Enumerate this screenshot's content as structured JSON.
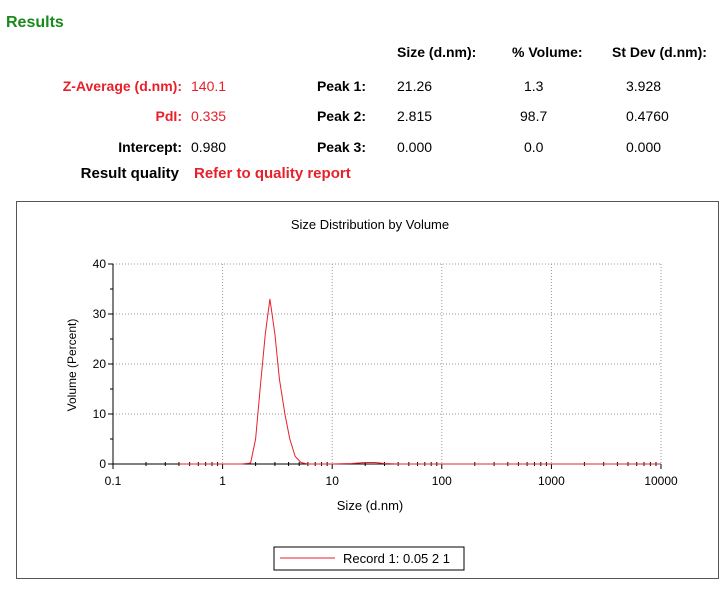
{
  "results": {
    "title": "Results",
    "headers": {
      "size": "Size (d.nm):",
      "volume": "% Volume:",
      "stdev": "St Dev (d.nm):"
    },
    "zavg_label": "Z-Average (d.nm):",
    "zavg_value": "140.1",
    "pdi_label": "PdI:",
    "pdi_value": "0.335",
    "intercept_label": "Intercept:",
    "intercept_value": "0.980",
    "quality_label": "Result quality",
    "quality_value": "Refer to quality report",
    "peaks": [
      {
        "label": "Peak 1:",
        "size": "21.26",
        "volume": "1.3",
        "stdev": "3.928"
      },
      {
        "label": "Peak 2:",
        "size": "2.815",
        "volume": "98.7",
        "stdev": "0.4760"
      },
      {
        "label": "Peak 3:",
        "size": "0.000",
        "volume": "0.0",
        "stdev": "0.000"
      }
    ]
  },
  "colors": {
    "title_green": "#1a8a1a",
    "accent_red": "#e8202a",
    "series_red": "#e8202a"
  },
  "chart_data": {
    "type": "line",
    "title": "Size Distribution by Volume",
    "xlabel": "Size (d.nm)",
    "ylabel": "Volume (Percent)",
    "xscale": "log",
    "xlim": [
      0.1,
      10000
    ],
    "ylim": [
      0,
      40
    ],
    "xticks": [
      "0.1",
      "1",
      "10",
      "100",
      "1000",
      "10000"
    ],
    "yticks": [
      "0",
      "10",
      "20",
      "30",
      "40"
    ],
    "grid": true,
    "legend_position": "bottom",
    "series": [
      {
        "name": "Record 1: 0.05 2 1",
        "x": [
          0.4,
          1.5,
          1.8,
          2.0,
          2.2,
          2.45,
          2.7,
          3.0,
          3.3,
          3.7,
          4.1,
          4.6,
          5.2,
          6,
          10,
          15,
          20,
          25,
          30,
          40,
          60,
          100,
          1000,
          10000
        ],
        "y": [
          0,
          0,
          0.2,
          5,
          15,
          26,
          33,
          26,
          17,
          10,
          5,
          1.5,
          0.3,
          0,
          0,
          0.1,
          0.3,
          0.3,
          0.1,
          0,
          0,
          0,
          0,
          0
        ]
      }
    ]
  }
}
